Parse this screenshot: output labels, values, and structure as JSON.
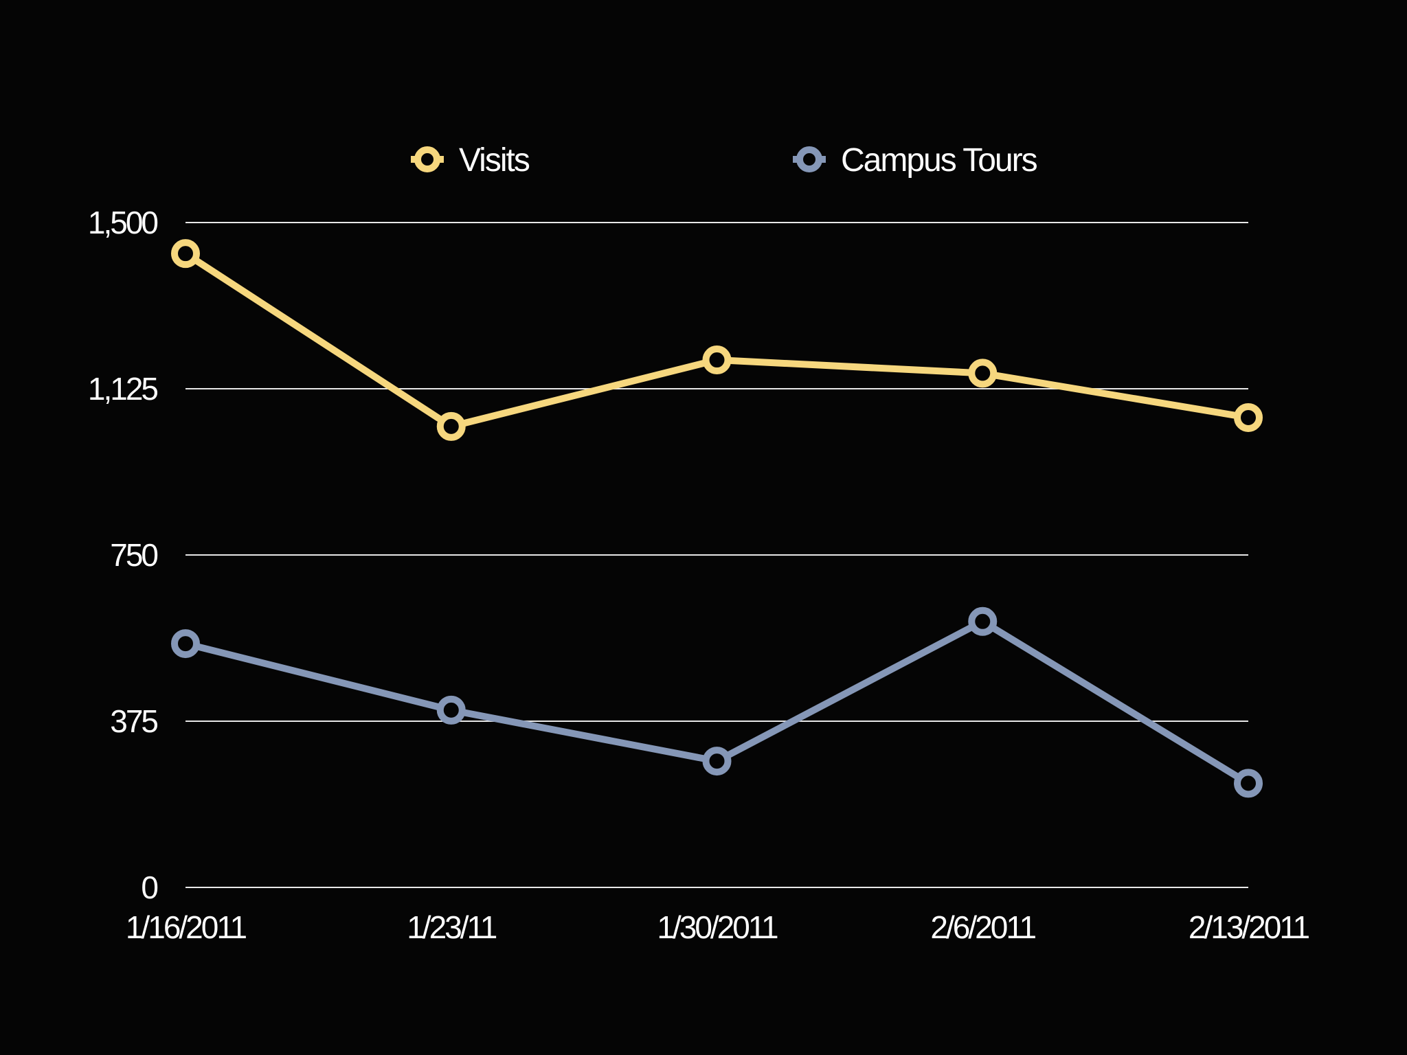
{
  "chart_data": {
    "type": "line",
    "title": "",
    "xlabel": "",
    "ylabel": "",
    "categories": [
      "1/16/2011",
      "1/23/11",
      "1/30/2011",
      "2/6/2011",
      "2/13/2011"
    ],
    "ylim": [
      0,
      1500
    ],
    "yticks": [
      0,
      375,
      750,
      1125,
      1500
    ],
    "ytick_labels": [
      "0",
      "375",
      "750",
      "1,125",
      "1,500"
    ],
    "grid": true,
    "legend_position": "top-center",
    "series": [
      {
        "name": "Visits",
        "color": "#F6D77E",
        "values": [
          1430,
          1040,
          1190,
          1160,
          1060
        ]
      },
      {
        "name": "Campus Tours",
        "color": "#8597B7",
        "values": [
          550,
          400,
          285,
          600,
          235
        ]
      }
    ]
  }
}
